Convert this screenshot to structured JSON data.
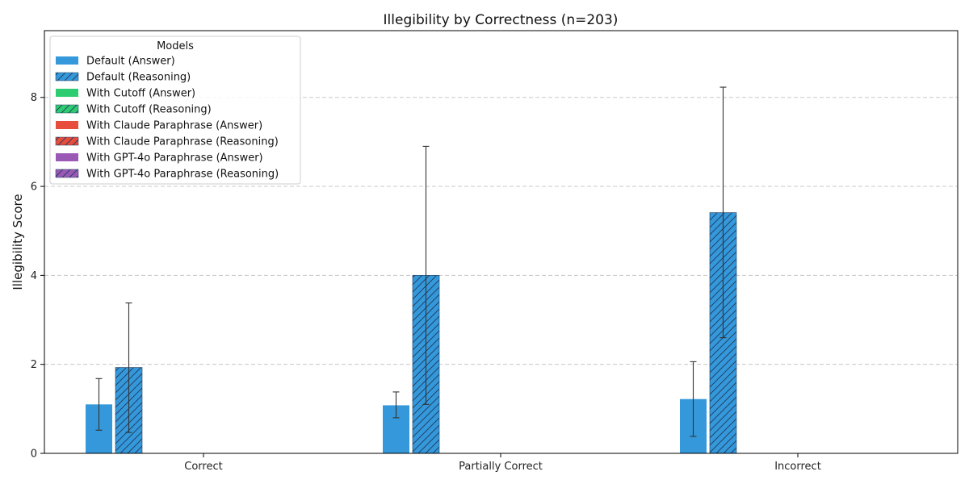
{
  "chart_data": {
    "type": "bar",
    "title": "Illegibility by Correctness (n=203)",
    "xlabel": "",
    "ylabel": "Illegibility Score",
    "ylim": [
      0,
      9.5
    ],
    "yticks": [
      0,
      2,
      4,
      6,
      8
    ],
    "grid": "y-dashed",
    "categories": [
      "Correct",
      "Partially Correct",
      "Incorrect"
    ],
    "legend": {
      "title": "Models",
      "placement": "top-left"
    },
    "series": [
      {
        "name": "Default (Answer)",
        "color": "#3498db",
        "hatched": false,
        "values": [
          1.1,
          1.08,
          1.22
        ],
        "err_low": [
          0.52,
          0.8,
          0.38
        ],
        "err_high": [
          1.68,
          1.38,
          2.06
        ]
      },
      {
        "name": "Default (Reasoning)",
        "color": "#3498db",
        "hatched": true,
        "values": [
          1.93,
          4.0,
          5.41
        ],
        "err_low": [
          0.47,
          1.1,
          2.6
        ],
        "err_high": [
          3.38,
          6.9,
          8.23
        ]
      },
      {
        "name": "With Cutoff (Answer)",
        "color": "#2ecc71",
        "hatched": false,
        "values": [
          0,
          0,
          0
        ]
      },
      {
        "name": "With Cutoff (Reasoning)",
        "color": "#2ecc71",
        "hatched": true,
        "values": [
          0,
          0,
          0
        ]
      },
      {
        "name": "With Claude Paraphrase (Answer)",
        "color": "#e74c3c",
        "hatched": false,
        "values": [
          0,
          0,
          0
        ]
      },
      {
        "name": "With Claude Paraphrase (Reasoning)",
        "color": "#e74c3c",
        "hatched": true,
        "values": [
          0,
          0,
          0
        ]
      },
      {
        "name": "With GPT-4o Paraphrase (Answer)",
        "color": "#9b59b6",
        "hatched": false,
        "values": [
          0,
          0,
          0
        ]
      },
      {
        "name": "With GPT-4o Paraphrase (Reasoning)",
        "color": "#9b59b6",
        "hatched": true,
        "values": [
          0,
          0,
          0
        ]
      }
    ]
  }
}
